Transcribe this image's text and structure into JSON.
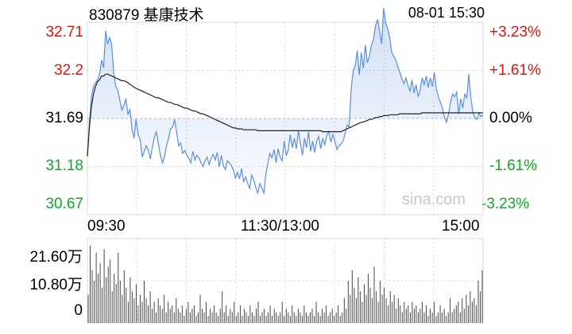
{
  "header": {
    "title": "830879 基康技术",
    "datetime": "08-01 15:30"
  },
  "watermark": "sina.com",
  "colors": {
    "price_line": "#5b8fdc",
    "avg_line": "#222222",
    "up": "#e8110f",
    "down": "#16a62a",
    "grid": "#d9d9d9",
    "volume_bar": "#333333"
  },
  "chart_data": [
    {
      "type": "line",
      "title": "",
      "series": [
        {
          "name": "",
          "values": [
            31.29,
            31.65,
            31.92,
            32.03,
            32.07,
            32.1,
            32.16,
            32.31,
            32.23,
            32.62,
            32.48,
            32.55,
            32.47,
            32.18,
            32.03,
            31.99,
            31.88,
            31.78,
            31.83,
            31.9,
            31.73,
            31.79,
            31.57,
            31.48,
            31.68,
            31.52,
            31.47,
            31.28,
            31.34,
            31.4,
            31.36,
            31.26,
            31.38,
            31.49,
            31.55,
            31.42,
            31.3,
            31.22,
            31.28,
            31.4,
            31.48,
            31.58,
            31.6,
            31.68,
            31.54,
            31.4,
            31.43,
            31.32,
            31.35,
            31.3,
            31.27,
            31.22,
            31.34,
            31.25,
            31.3,
            31.27,
            31.22,
            31.18,
            31.24,
            31.28,
            31.2,
            31.27,
            31.31,
            31.25,
            31.33,
            31.18,
            31.3,
            31.19,
            31.15,
            31.24,
            31.22,
            31.19,
            31.14,
            31.06,
            31.12,
            31.05,
            31.16,
            31.02,
            31.07,
            31.0,
            30.95,
            31.09,
            31.04,
            30.96,
            30.9,
            31.0,
            30.95,
            30.9,
            31.1,
            31.22,
            31.32,
            31.27,
            31.36,
            31.22,
            31.37,
            31.28,
            31.24,
            31.45,
            31.3,
            31.35,
            31.52,
            31.38,
            31.48,
            31.37,
            31.56,
            31.42,
            31.3,
            31.48,
            31.38,
            31.55,
            31.34,
            31.45,
            31.33,
            31.45,
            31.5,
            31.37,
            31.48,
            31.41,
            31.51,
            31.55,
            31.44,
            31.52,
            31.45,
            31.36,
            31.4,
            31.42,
            31.45,
            31.53,
            31.62,
            31.6,
            32.0,
            32.2,
            32.25,
            32.41,
            32.15,
            32.39,
            32.22,
            32.47,
            32.28,
            32.35,
            32.47,
            32.53,
            32.67,
            32.74,
            32.62,
            32.48,
            32.86,
            32.71,
            32.64,
            32.55,
            32.39,
            32.35,
            32.31,
            32.24,
            32.18,
            32.11,
            32.06,
            32.12,
            32.04,
            31.98,
            32.1,
            31.96,
            32.05,
            31.92,
            31.99,
            32.12,
            32.05,
            32.14,
            32.02,
            32.12,
            32.03,
            32.18,
            32.0,
            31.92,
            31.86,
            31.8,
            31.7,
            31.65,
            31.74,
            31.86,
            31.95,
            31.92,
            31.97,
            31.74,
            31.9,
            31.8,
            31.95,
            31.91,
            32.16,
            31.91,
            31.76,
            31.7,
            31.68,
            31.75,
            31.71,
            31.73
          ]
        },
        {
          "name": "",
          "values": [
            31.29,
            31.6,
            31.82,
            31.95,
            32.03,
            32.08,
            32.1,
            32.14,
            32.14,
            32.16,
            32.16,
            32.15,
            32.14,
            32.13,
            32.12,
            32.11,
            32.1,
            32.09,
            32.09,
            32.08,
            32.07,
            32.05,
            32.04,
            32.02,
            32.01,
            32.0,
            31.99,
            31.98,
            31.97,
            31.96,
            31.95,
            31.94,
            31.93,
            31.92,
            31.91,
            31.91,
            31.9,
            31.89,
            31.88,
            31.87,
            31.86,
            31.86,
            31.85,
            31.84,
            31.84,
            31.83,
            31.82,
            31.81,
            31.8,
            31.8,
            31.79,
            31.78,
            31.77,
            31.77,
            31.76,
            31.75,
            31.74,
            31.74,
            31.73,
            31.72,
            31.71,
            31.7,
            31.69,
            31.68,
            31.67,
            31.66,
            31.65,
            31.64,
            31.63,
            31.62,
            31.61,
            31.6,
            31.59,
            31.59,
            31.58,
            31.58,
            31.58,
            31.57,
            31.57,
            31.57,
            31.57,
            31.57,
            31.57,
            31.57,
            31.56,
            31.56,
            31.56,
            31.56,
            31.56,
            31.56,
            31.56,
            31.56,
            31.56,
            31.56,
            31.56,
            31.56,
            31.56,
            31.56,
            31.56,
            31.56,
            31.56,
            31.56,
            31.56,
            31.56,
            31.56,
            31.56,
            31.56,
            31.56,
            31.56,
            31.56,
            31.56,
            31.56,
            31.56,
            31.56,
            31.56,
            31.56,
            31.55,
            31.55,
            31.55,
            31.55,
            31.55,
            31.55,
            31.55,
            31.55,
            31.55,
            31.55,
            31.56,
            31.57,
            31.58,
            31.59,
            31.6,
            31.61,
            31.62,
            31.63,
            31.64,
            31.65,
            31.65,
            31.66,
            31.67,
            31.68,
            31.68,
            31.69,
            31.7,
            31.7,
            31.71,
            31.71,
            31.72,
            31.72,
            31.72,
            31.73,
            31.73,
            31.73,
            31.73,
            31.73,
            31.74,
            31.74,
            31.74,
            31.74,
            31.74,
            31.74,
            31.74,
            31.74,
            31.74,
            31.74,
            31.74,
            31.75,
            31.75,
            31.75,
            31.75,
            31.75,
            31.75,
            31.75,
            31.75,
            31.75,
            31.75,
            31.75,
            31.75,
            31.75,
            31.75,
            31.75,
            31.75,
            31.75,
            31.75,
            31.75,
            31.75,
            31.75,
            31.75,
            31.75,
            31.75,
            31.75,
            31.75,
            31.75,
            31.75,
            31.75,
            31.75,
            31.75
          ]
        }
      ],
      "ylim": [
        30.67,
        32.71
      ],
      "y_ticks": [
        32.71,
        32.2,
        31.69,
        31.18,
        30.67
      ],
      "pct_ticks": [
        "+3.23%",
        "+1.61%",
        "0.00%",
        "-1.61%",
        "-3.23%"
      ],
      "x_ticks": [
        "09:30",
        "11:30/13:00",
        "15:00"
      ],
      "prev_close": 31.69,
      "grid": true
    },
    {
      "type": "bar",
      "title": "",
      "values": [
        8,
        22,
        15,
        12,
        20,
        14,
        17,
        10,
        21,
        13,
        16,
        18,
        9,
        14,
        11,
        20,
        12,
        8,
        15,
        10,
        6,
        13,
        9,
        7,
        11,
        5,
        8,
        6,
        12,
        7,
        5,
        9,
        4,
        6,
        3,
        7,
        5,
        4,
        8,
        3,
        6,
        4,
        5,
        3,
        7,
        4,
        3,
        5,
        2,
        4,
        6,
        3,
        4,
        5,
        2,
        3,
        8,
        4,
        3,
        6,
        2,
        4,
        3,
        5,
        3,
        2,
        4,
        9,
        3,
        5,
        2,
        4,
        3,
        6,
        2,
        3,
        5,
        2,
        4,
        3,
        2,
        5,
        3,
        2,
        4,
        6,
        2,
        3,
        4,
        2,
        3,
        5,
        2,
        4,
        3,
        2,
        3,
        6,
        2,
        4,
        3,
        2,
        5,
        3,
        2,
        4,
        3,
        2,
        5,
        3,
        2,
        3,
        4,
        2,
        6,
        3,
        2,
        4,
        3,
        5,
        2,
        3,
        4,
        2,
        3,
        5,
        2,
        3,
        7,
        4,
        12,
        8,
        15,
        10,
        7,
        13,
        9,
        6,
        11,
        8,
        14,
        10,
        7,
        16,
        9,
        6,
        12,
        8,
        10,
        7,
        5,
        9,
        6,
        8,
        4,
        7,
        5,
        3,
        6,
        4,
        5,
        3,
        6,
        4,
        5,
        3,
        4,
        6,
        3,
        5,
        2,
        4,
        3,
        6,
        2,
        3,
        5,
        3,
        4,
        2,
        3,
        7,
        3,
        4,
        5,
        6,
        3,
        7,
        4,
        8,
        5,
        9,
        6,
        7,
        5,
        12,
        9,
        15
      ],
      "y_ticks": [
        "21.60万",
        "10.80万",
        "0"
      ],
      "ylim": [
        0,
        24
      ],
      "grid": true
    }
  ]
}
